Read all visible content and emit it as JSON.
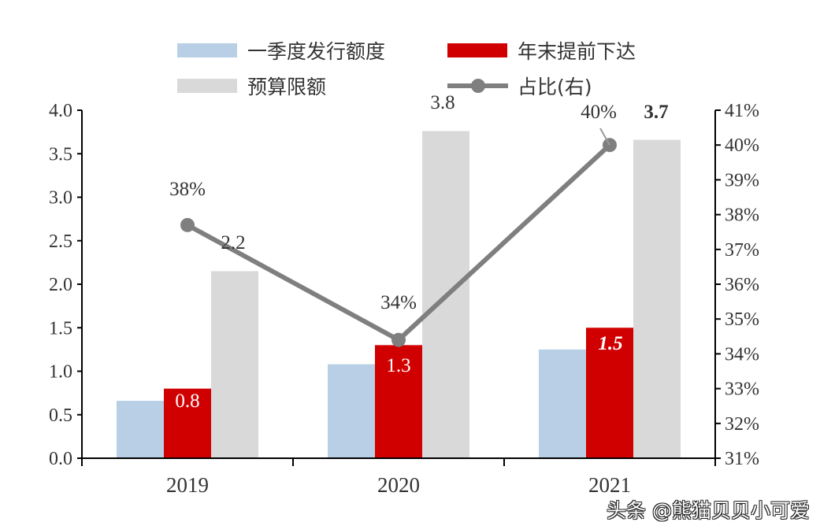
{
  "chart_data": {
    "type": "bar",
    "categories": [
      "2019",
      "2020",
      "2021"
    ],
    "series": [
      {
        "name": "一季度发行额度",
        "kind": "bar",
        "axis": "left",
        "color": "#b8cfe6",
        "values": [
          0.66,
          1.08,
          1.25
        ]
      },
      {
        "name": "年末提前下达",
        "kind": "bar",
        "axis": "left",
        "color": "#d10000",
        "values": [
          0.8,
          1.3,
          1.5
        ],
        "labels": [
          "0.8",
          "1.3",
          "1.5"
        ]
      },
      {
        "name": "预算限额",
        "kind": "bar",
        "axis": "left",
        "color": "#d9d9d9",
        "values": [
          2.15,
          3.76,
          3.66
        ],
        "labels": [
          "2.2",
          "3.8",
          "3.7"
        ]
      },
      {
        "name": "占比(右)",
        "kind": "line",
        "axis": "right",
        "color": "#7f7f7f",
        "values": [
          37.7,
          34.4,
          40.0
        ],
        "labels": [
          "38%",
          "34%",
          "40%"
        ]
      }
    ],
    "left_axis": {
      "ylim": [
        0,
        4.0
      ],
      "ticks": [
        "0.0",
        "0.5",
        "1.0",
        "1.5",
        "2.0",
        "2.5",
        "3.0",
        "3.5",
        "4.0"
      ]
    },
    "right_axis": {
      "ylim": [
        31,
        41
      ],
      "ticks": [
        "31%",
        "32%",
        "33%",
        "34%",
        "35%",
        "36%",
        "37%",
        "38%",
        "39%",
        "40%",
        "41%"
      ]
    },
    "grid": false,
    "legend_placement": "top"
  },
  "watermark": "头条 @熊猫贝贝小可爱"
}
